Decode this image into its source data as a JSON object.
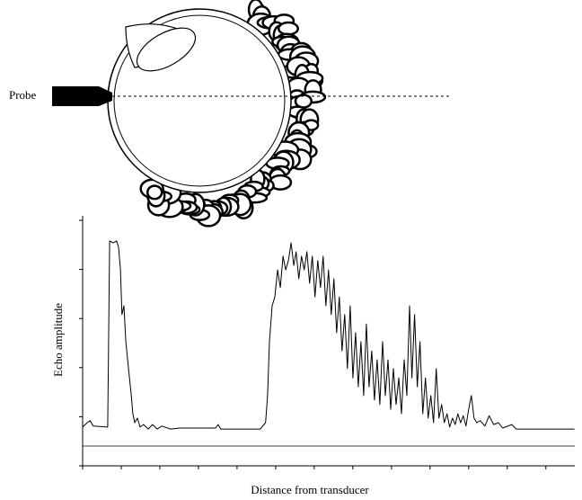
{
  "chart_data": {
    "type": "line",
    "annotation": "Probe",
    "y_label": "Echo amplitude",
    "x_label": "Distance from transducer",
    "color": "#000000",
    "xlim": [
      0,
      12.75
    ],
    "ylim": [
      0,
      5
    ],
    "xticks": [
      0,
      1,
      2,
      3,
      4,
      5,
      6,
      7,
      8,
      9,
      10,
      11,
      12
    ],
    "yticks": [
      0,
      1,
      2,
      3,
      4,
      5
    ],
    "x": [
      0,
      0.12,
      0.19,
      0.28,
      0.65,
      0.7,
      0.79,
      0.88,
      0.93,
      0.98,
      1.02,
      1.07,
      1.12,
      1.19,
      1.26,
      1.3,
      1.35,
      1.42,
      1.49,
      1.58,
      1.7,
      1.81,
      1.93,
      2.05,
      2.28,
      2.51,
      3.44,
      3.51,
      3.58,
      4.6,
      4.74,
      4.79,
      4.84,
      4.91,
      4.98,
      5.05,
      5.12,
      5.19,
      5.26,
      5.33,
      5.4,
      5.47,
      5.53,
      5.6,
      5.67,
      5.74,
      5.81,
      5.88,
      5.95,
      6.02,
      6.09,
      6.16,
      6.23,
      6.3,
      6.37,
      6.44,
      6.51,
      6.58,
      6.65,
      6.72,
      6.79,
      6.86,
      6.93,
      7.0,
      7.07,
      7.14,
      7.21,
      7.28,
      7.35,
      7.42,
      7.49,
      7.56,
      7.63,
      7.7,
      7.77,
      7.84,
      7.91,
      7.98,
      8.05,
      8.12,
      8.19,
      8.26,
      8.33,
      8.4,
      8.47,
      8.53,
      8.6,
      8.67,
      8.74,
      8.81,
      8.88,
      8.95,
      9.02,
      9.09,
      9.16,
      9.23,
      9.3,
      9.37,
      9.44,
      9.51,
      9.58,
      9.65,
      9.72,
      9.79,
      9.86,
      9.93,
      10.0,
      10.07,
      10.14,
      10.21,
      10.3,
      10.42,
      10.53,
      10.65,
      10.77,
      10.88,
      11.12,
      11.23,
      12.74
    ],
    "values": [
      0.79,
      0.88,
      0.92,
      0.81,
      0.79,
      4.58,
      4.54,
      4.58,
      4.45,
      4.0,
      3.08,
      3.26,
      2.53,
      1.98,
      1.43,
      1.06,
      0.88,
      0.97,
      0.79,
      0.84,
      0.75,
      0.84,
      0.75,
      0.81,
      0.75,
      0.77,
      0.77,
      0.84,
      0.75,
      0.75,
      0.88,
      1.43,
      2.53,
      3.26,
      3.44,
      3.99,
      3.63,
      4.27,
      3.99,
      4.18,
      4.54,
      4.08,
      4.36,
      3.81,
      4.27,
      3.99,
      4.36,
      3.72,
      4.27,
      3.44,
      4.18,
      3.63,
      4.27,
      3.26,
      3.99,
      3.08,
      3.81,
      2.71,
      3.44,
      2.34,
      3.08,
      1.98,
      3.26,
      1.79,
      2.71,
      1.61,
      2.53,
      1.43,
      2.89,
      1.61,
      2.34,
      1.34,
      2.16,
      1.25,
      2.53,
      1.43,
      2.16,
      1.15,
      1.98,
      1.25,
      1.79,
      1.06,
      2.16,
      1.43,
      3.26,
      1.79,
      3.08,
      1.61,
      2.53,
      1.06,
      1.79,
      0.97,
      1.43,
      0.88,
      1.98,
      0.97,
      1.25,
      0.88,
      1.06,
      0.79,
      0.97,
      0.84,
      1.06,
      0.88,
      1.02,
      0.81,
      1.15,
      1.43,
      0.97,
      0.88,
      0.92,
      0.81,
      1.02,
      0.84,
      0.88,
      0.77,
      0.84,
      0.75,
      0.75
    ]
  }
}
